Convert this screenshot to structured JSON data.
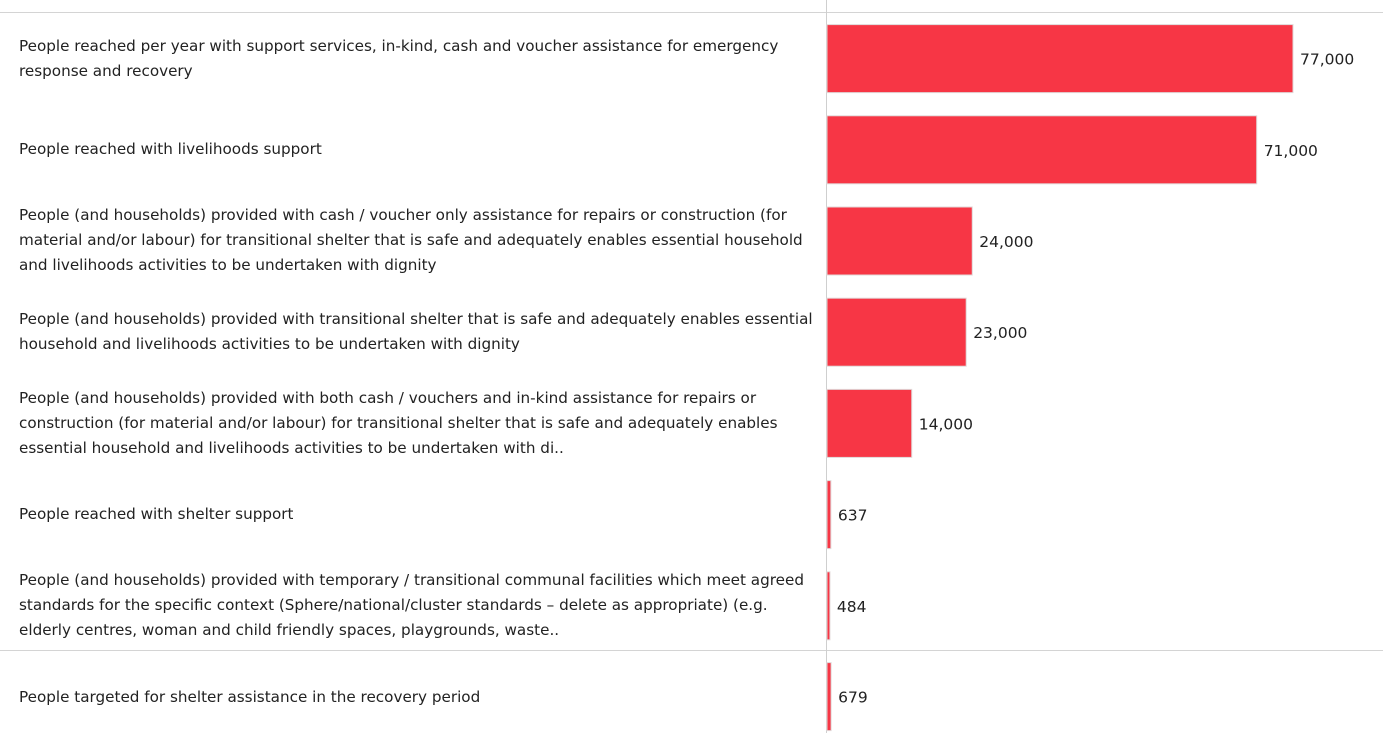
{
  "chart_data": {
    "type": "bar",
    "orientation": "horizontal",
    "bar_color": "#f73645",
    "bar_edge_color": "#e0d8d8",
    "grid": false,
    "groups": [
      {
        "categories": [
          "People reached per year with support services, in-kind, cash and voucher assistance for emergency response and recovery",
          "People reached with livelihoods support",
          "People (and households) provided with cash / voucher only assistance for repairs or construction (for material and/or labour) for transitional shelter that is safe and adequately enables essential household and livelihoods activities to be undertaken with dignity",
          "People (and households) provided with transitional shelter that is safe and adequately enables essential household and livelihoods activities to be undertaken with dignity",
          "People (and households) provided with both cash / vouchers and in-kind assistance for repairs or construction (for material and/or labour) for transitional shelter that is safe and adequately enables essential household and livelihoods activities to be undertaken with di..",
          "People reached with shelter support",
          "People (and households) provided with temporary / transitional communal facilities which meet agreed standards for the specific context (Sphere/national/cluster standards – delete as appropriate) (e.g. elderly centres, woman and child friendly spaces, playgrounds, waste.."
        ],
        "values": [
          77000,
          71000,
          24000,
          23000,
          14000,
          637,
          484
        ],
        "value_labels": [
          "77,000",
          "71,000",
          "24,000",
          "23,000",
          "14,000",
          "637",
          "484"
        ]
      },
      {
        "categories": [
          "People targeted for shelter assistance in the recovery period"
        ],
        "values": [
          679
        ],
        "value_labels": [
          "679"
        ]
      }
    ],
    "xlim": [
      0,
      84000
    ]
  }
}
